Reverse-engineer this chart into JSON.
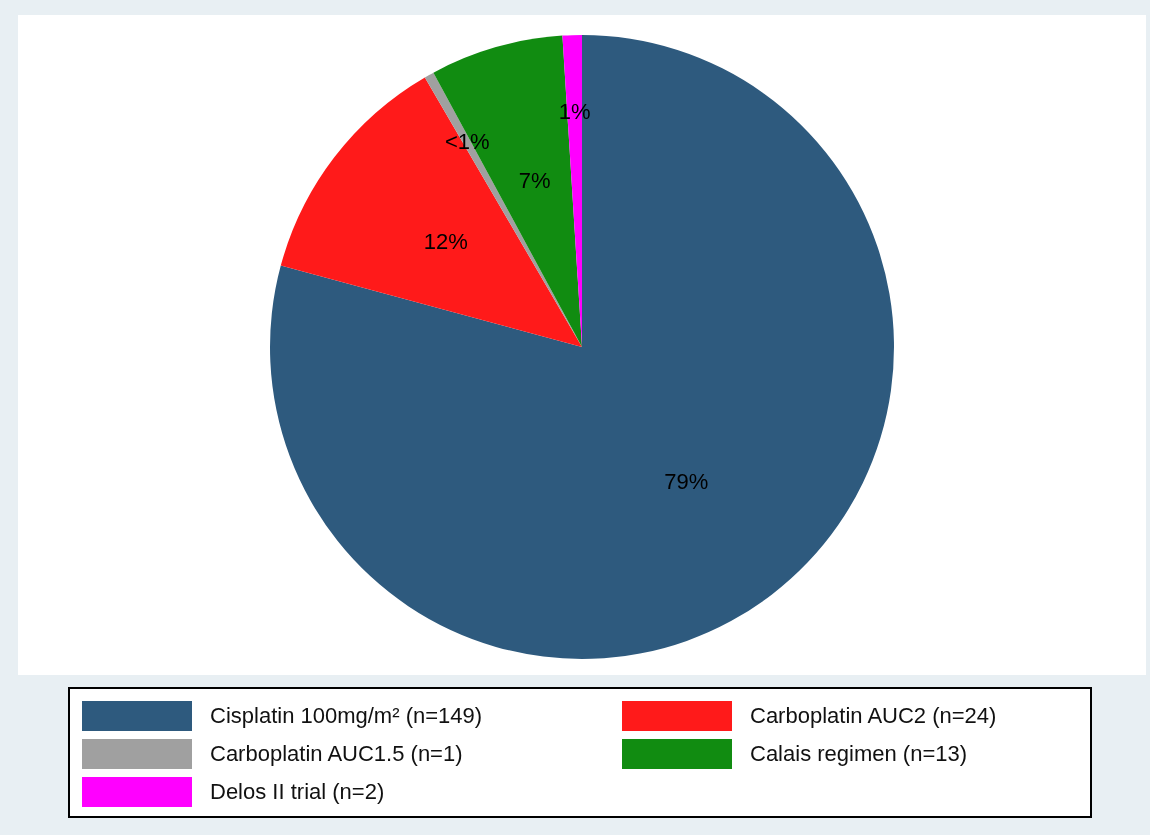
{
  "chart_data": {
    "type": "pie",
    "categories": [
      "Cisplatin 100mg/m² (n=149)",
      "Carboplatin AUC2 (n=24)",
      "Carboplatin AUC1.5 (n=1)",
      "Calais regimen (n=13)",
      "Delos II trial (n=2)"
    ],
    "values": [
      79.2,
      12.4,
      0.5,
      6.9,
      1
    ],
    "value_labels": [
      "79%",
      "12%",
      "<1%",
      "7%",
      "1%"
    ],
    "colors": [
      "#2e5a7e",
      "#ff1a1a",
      "#a0a0a0",
      "#118c11",
      "#ff00ff"
    ],
    "legend": "bottom"
  }
}
